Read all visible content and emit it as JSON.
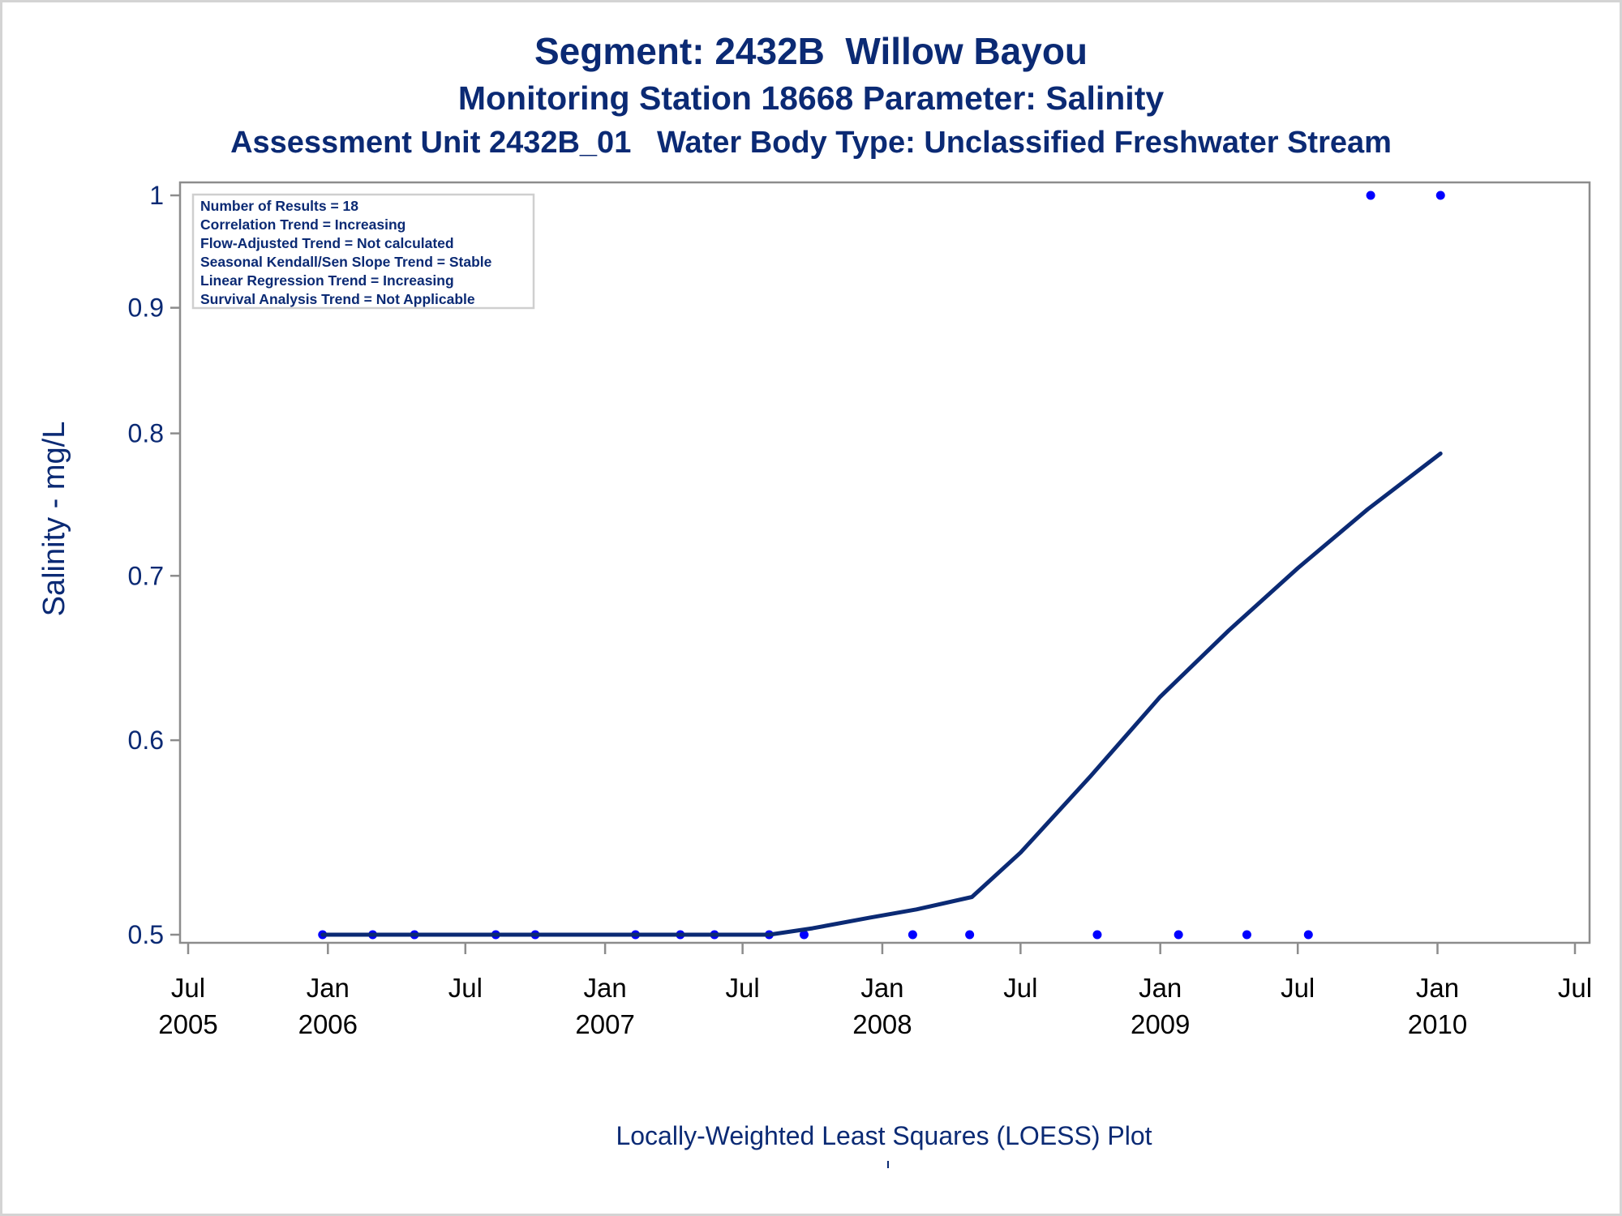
{
  "titles": {
    "line1": "Segment: 2432B  Willow Bayou",
    "line2": "Monitoring Station 18668 Parameter: Salinity",
    "line3": "Assessment Unit 2432B_01   Water Body Type: Unclassified Freshwater Stream"
  },
  "footnote": "Locally-Weighted Least Squares (LOESS) Plot",
  "stats_box": [
    "Number of Results = 18",
    "Correlation Trend = Increasing",
    "Flow-Adjusted Trend = Not calculated",
    "Seasonal Kendall/Sen Slope Trend = Stable",
    "Linear Regression Trend = Increasing",
    "Survival Analysis Trend = Not Applicable"
  ],
  "chart_data": {
    "type": "scatter",
    "ylabel": "Salinity - mg/L",
    "yscale": "log",
    "ylim": [
      0.5,
      1
    ],
    "yticks": [
      0.5,
      0.6,
      0.7,
      0.8,
      0.9,
      1
    ],
    "xlim": [
      "2005-07-01",
      "2010-07-01"
    ],
    "xticks": [
      {
        "date": "2005-07-01",
        "month": "Jul",
        "year": "2005"
      },
      {
        "date": "2006-01-01",
        "month": "Jan",
        "year": "2006"
      },
      {
        "date": "2006-07-01",
        "month": "Jul",
        "year": ""
      },
      {
        "date": "2007-01-01",
        "month": "Jan",
        "year": "2007"
      },
      {
        "date": "2007-07-01",
        "month": "Jul",
        "year": ""
      },
      {
        "date": "2008-01-01",
        "month": "Jan",
        "year": "2008"
      },
      {
        "date": "2008-07-01",
        "month": "Jul",
        "year": ""
      },
      {
        "date": "2009-01-01",
        "month": "Jan",
        "year": "2009"
      },
      {
        "date": "2009-07-01",
        "month": "Jul",
        "year": ""
      },
      {
        "date": "2010-01-01",
        "month": "Jan",
        "year": "2010"
      },
      {
        "date": "2010-07-01",
        "month": "Jul",
        "year": ""
      }
    ],
    "series": [
      {
        "type": "scatter",
        "color": "#0000ff",
        "points": [
          {
            "x": "2005-12-25",
            "y": 0.5
          },
          {
            "x": "2006-03-01",
            "y": 0.5
          },
          {
            "x": "2006-04-25",
            "y": 0.5
          },
          {
            "x": "2006-08-10",
            "y": 0.5
          },
          {
            "x": "2006-10-01",
            "y": 0.5
          },
          {
            "x": "2007-02-10",
            "y": 0.5
          },
          {
            "x": "2007-04-10",
            "y": 0.5
          },
          {
            "x": "2007-05-25",
            "y": 0.5
          },
          {
            "x": "2007-08-05",
            "y": 0.5
          },
          {
            "x": "2007-09-20",
            "y": 0.5
          },
          {
            "x": "2008-02-10",
            "y": 0.5
          },
          {
            "x": "2008-04-25",
            "y": 0.5
          },
          {
            "x": "2008-10-10",
            "y": 0.5
          },
          {
            "x": "2009-01-25",
            "y": 0.5
          },
          {
            "x": "2009-04-25",
            "y": 0.5
          },
          {
            "x": "2009-07-15",
            "y": 0.5
          },
          {
            "x": "2009-10-05",
            "y": 1
          },
          {
            "x": "2010-01-05",
            "y": 1
          }
        ]
      },
      {
        "type": "line",
        "color": "#0b2a74",
        "points": [
          {
            "x": "2005-12-25",
            "y": 0.5
          },
          {
            "x": "2007-08-05",
            "y": 0.5
          },
          {
            "x": "2007-10-01",
            "y": 0.503
          },
          {
            "x": "2007-12-15",
            "y": 0.508
          },
          {
            "x": "2008-02-15",
            "y": 0.512
          },
          {
            "x": "2008-04-28",
            "y": 0.518
          },
          {
            "x": "2008-07-01",
            "y": 0.54
          },
          {
            "x": "2008-10-01",
            "y": 0.58
          },
          {
            "x": "2009-01-01",
            "y": 0.625
          },
          {
            "x": "2009-04-01",
            "y": 0.665
          },
          {
            "x": "2009-07-01",
            "y": 0.705
          },
          {
            "x": "2009-10-01",
            "y": 0.745
          },
          {
            "x": "2010-01-05",
            "y": 0.785
          }
        ]
      }
    ]
  }
}
